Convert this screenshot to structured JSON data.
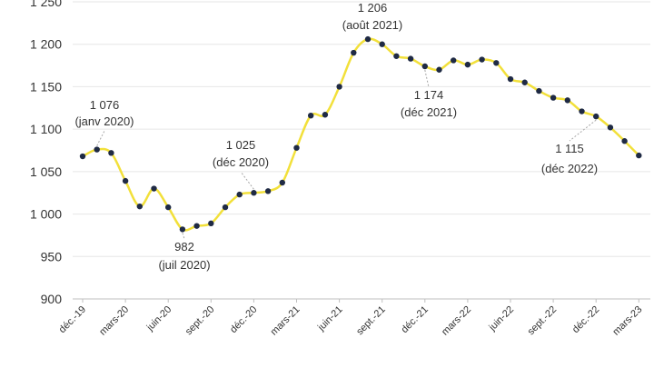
{
  "chart_data": {
    "type": "line",
    "title": "",
    "xlabel": "",
    "ylabel": "",
    "ylim": [
      900,
      1250
    ],
    "yticks": [
      "900",
      "950",
      "1 000",
      "1 050",
      "1 100",
      "1 150",
      "1 200",
      "1 250"
    ],
    "ytick_values": [
      900,
      950,
      1000,
      1050,
      1100,
      1150,
      1200,
      1250
    ],
    "x": [
      "2019-12",
      "2020-01",
      "2020-02",
      "2020-03",
      "2020-04",
      "2020-05",
      "2020-06",
      "2020-07",
      "2020-08",
      "2020-09",
      "2020-10",
      "2020-11",
      "2020-12",
      "2021-01",
      "2021-02",
      "2021-03",
      "2021-04",
      "2021-05",
      "2021-06",
      "2021-07",
      "2021-08",
      "2021-09",
      "2021-10",
      "2021-11",
      "2021-12",
      "2022-01",
      "2022-02",
      "2022-03",
      "2022-04",
      "2022-05",
      "2022-06",
      "2022-07",
      "2022-08",
      "2022-09",
      "2022-10",
      "2022-11",
      "2022-12",
      "2023-01",
      "2023-02",
      "2023-03"
    ],
    "values": [
      1068,
      1076,
      1072,
      1039,
      1009,
      1030,
      1008,
      982,
      986,
      989,
      1008,
      1023,
      1025,
      1027,
      1037,
      1078,
      1116,
      1117,
      1150,
      1190,
      1206,
      1200,
      1186,
      1183,
      1174,
      1170,
      1181,
      1176,
      1182,
      1178,
      1159,
      1155,
      1145,
      1137,
      1134,
      1121,
      1115,
      1102,
      1086,
      1069
    ],
    "xticks": [
      {
        "label": "déc.-19",
        "index": 0
      },
      {
        "label": "mars-20",
        "index": 3
      },
      {
        "label": "juin-20",
        "index": 6
      },
      {
        "label": "sept.-20",
        "index": 9
      },
      {
        "label": "déc.-20",
        "index": 12
      },
      {
        "label": "mars-21",
        "index": 15
      },
      {
        "label": "juin-21",
        "index": 18
      },
      {
        "label": "sept.-21",
        "index": 21
      },
      {
        "label": "déc.-21",
        "index": 24
      },
      {
        "label": "mars-22",
        "index": 27
      },
      {
        "label": "juin-22",
        "index": 30
      },
      {
        "label": "sept.-22",
        "index": 33
      },
      {
        "label": "déc.-22",
        "index": 36
      },
      {
        "label": "mars-23",
        "index": 39
      }
    ],
    "annotations": [
      {
        "index": 1,
        "value_text": "1 076",
        "date_text": "(janv 2020)"
      },
      {
        "index": 7,
        "value_text": "982",
        "date_text": "(juil 2020)"
      },
      {
        "index": 12,
        "value_text": "1 025",
        "date_text": "(déc 2020)"
      },
      {
        "index": 20,
        "value_text": "1 206",
        "date_text": "(août 2021)"
      },
      {
        "index": 24,
        "value_text": "1 174",
        "date_text": "(déc 2021)"
      },
      {
        "index": 36,
        "value_text": "1 115",
        "date_text": "(déc 2022)"
      }
    ],
    "grid": true,
    "colors": {
      "line": "#f2e03a",
      "marker": "#1f2a44",
      "grid": "#e6e6e6",
      "text": "#333333"
    }
  }
}
